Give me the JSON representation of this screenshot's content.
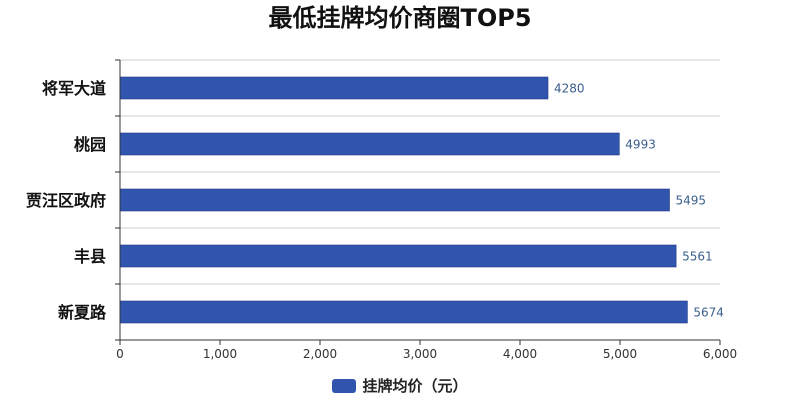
{
  "chart_data": {
    "type": "bar",
    "orientation": "horizontal",
    "title": "最低挂牌均价商圈TOP5",
    "categories": [
      "将军大道",
      "桃园",
      "贾汪区政府",
      "丰县",
      "新夏路"
    ],
    "series": [
      {
        "name": "挂牌均价（元）",
        "values": [
          4280,
          4993,
          5495,
          5561,
          5674
        ],
        "color": "#3154ae"
      }
    ],
    "xlim": [
      0,
      6000
    ],
    "xticks": [
      0,
      1000,
      2000,
      3000,
      4000,
      5000,
      6000
    ],
    "xtick_labels": [
      "0",
      "1,000",
      "2,000",
      "3,000",
      "4,000",
      "5,000",
      "6,000"
    ],
    "grid": "horizontal",
    "legend_position": "bottom"
  }
}
